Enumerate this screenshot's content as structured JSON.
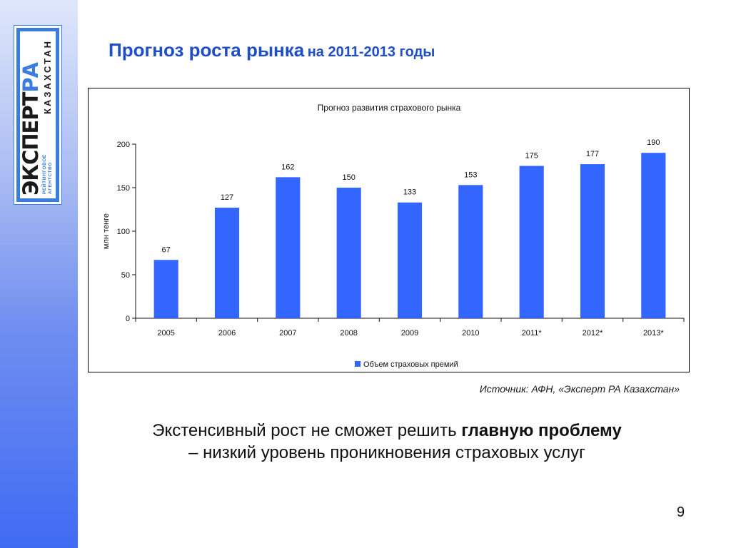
{
  "slide": {
    "title_main": "Прогноз роста рынка",
    "title_sub": "на 2011-2013 годы",
    "source": "Источник: АФН, «Эксперт РА Казахстан»",
    "caption_plain": "Экстенсивный рост не сможет решить ",
    "caption_bold": "главную проблему",
    "caption_line2": "– низкий уровень проникновения страховых услуг",
    "page_number": "9"
  },
  "logo": {
    "word_dark": "ЭКСПЕРТ",
    "word_blue": "РА",
    "sub_line1": "РЕЙТИНГОВОЕ",
    "sub_line2": "АГЕНТСТВО",
    "country": "КАЗАХСТАН"
  },
  "colors": {
    "bar": "#3366ff",
    "title": "#1f4fc6",
    "side_gradient_bottom": "#3f6bf4",
    "logo_blue": "#3a7de0"
  },
  "chart_data": {
    "type": "bar",
    "title": "Прогноз развития страхового рынка",
    "ylabel": "млн тенге",
    "xlabel": "",
    "ylim": [
      0,
      200
    ],
    "yticks": [
      0,
      50,
      100,
      150,
      200
    ],
    "categories": [
      "2005",
      "2006",
      "2007",
      "2008",
      "2009",
      "2010",
      "2011*",
      "2012*",
      "2013*"
    ],
    "series": [
      {
        "name": "Объем страховых премий",
        "values": [
          67,
          127,
          162,
          150,
          133,
          153,
          175,
          177,
          190
        ],
        "color": "#3366ff"
      }
    ],
    "data_labels": true,
    "grid": false,
    "legend_position": "bottom"
  }
}
